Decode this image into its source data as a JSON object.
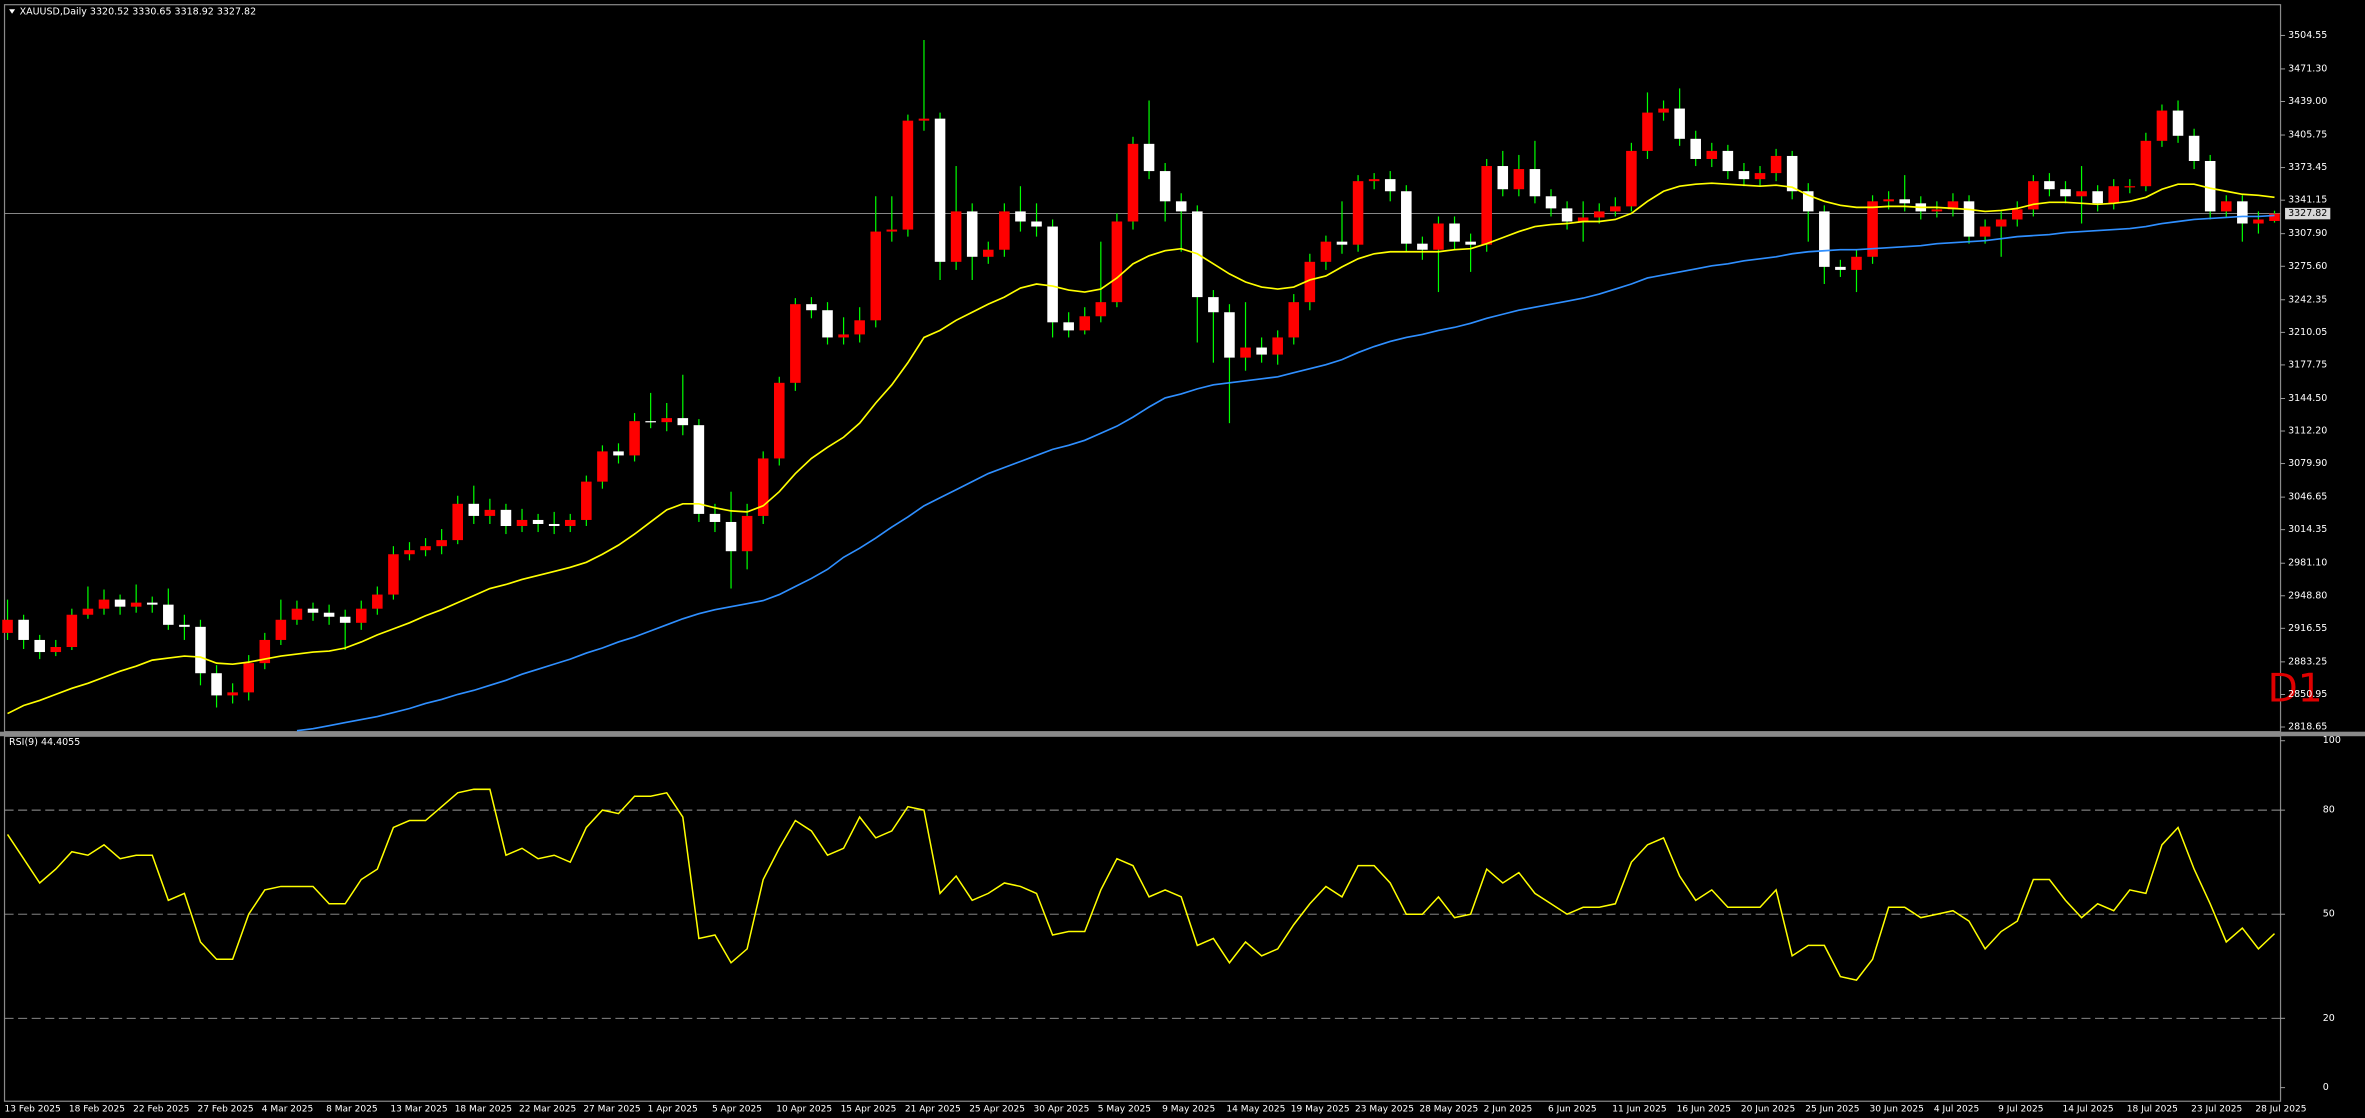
{
  "chart_data": [
    {
      "type": "candlestick",
      "title": "XAUUSD,Daily 3320.52 3330.65 3318.92 3327.82",
      "label": "D1",
      "categories": [
        "13 Feb 2025",
        null,
        null,
        null,
        "18 Feb 2025",
        null,
        null,
        null,
        "22 Feb 2025",
        null,
        null,
        null,
        "27 Feb 2025",
        null,
        null,
        null,
        "4 Mar 2025",
        null,
        null,
        null,
        "8 Mar 2025",
        null,
        null,
        null,
        "13 Mar 2025",
        null,
        null,
        null,
        "18 Mar 2025",
        null,
        null,
        null,
        "22 Mar 2025",
        null,
        null,
        null,
        "27 Mar 2025",
        null,
        null,
        null,
        "1 Apr 2025",
        null,
        null,
        null,
        "5 Apr 2025",
        null,
        null,
        null,
        "10 Apr 2025",
        null,
        null,
        null,
        "15 Apr 2025",
        null,
        null,
        null,
        "21 Apr 2025",
        null,
        null,
        null,
        "25 Apr 2025",
        null,
        null,
        null,
        "30 Apr 2025",
        null,
        null,
        null,
        "5 May 2025",
        null,
        null,
        null,
        "9 May 2025",
        null,
        null,
        null,
        "14 May 2025",
        null,
        null,
        null,
        "19 May 2025",
        null,
        null,
        null,
        "23 May 2025",
        null,
        null,
        null,
        "28 May 2025",
        null,
        null,
        null,
        "2 Jun 2025",
        null,
        null,
        null,
        "6 Jun 2025",
        null,
        null,
        null,
        "11 Jun 2025",
        null,
        null,
        null,
        "16 Jun 2025",
        null,
        null,
        null,
        "20 Jun 2025",
        null,
        null,
        null,
        "25 Jun 2025",
        null,
        null,
        null,
        "30 Jun 2025",
        null,
        null,
        null,
        "4 Jul 2025",
        null,
        null,
        null,
        "9 Jul 2025",
        null,
        null,
        null,
        "14 Jul 2025",
        null,
        null,
        null,
        "18 Jul 2025",
        null,
        null,
        null,
        "23 Jul 2025",
        null,
        null,
        null,
        "28 Jul 2025",
        null
      ],
      "open": [
        2912,
        2925,
        2905,
        2893,
        2898,
        2930,
        2936,
        2945,
        2938,
        2942,
        2940,
        2920,
        2918,
        2872,
        2850,
        2853,
        2882,
        2905,
        2925,
        2936,
        2932,
        2928,
        2922,
        2936,
        2950,
        2990,
        2994,
        2998,
        3004,
        3040,
        3028,
        3034,
        3018,
        3024,
        3020,
        3018,
        3024,
        3062,
        3092,
        3088,
        3122,
        3121,
        3125,
        3118,
        3030,
        3022,
        2993,
        3028,
        3085,
        3160,
        3238,
        3232,
        3205,
        3208,
        3222,
        3310,
        3312,
        3420,
        3422,
        3280,
        3330,
        3285,
        3292,
        3330,
        3320,
        3315,
        3220,
        3212,
        3226,
        3240,
        3320,
        3397,
        3370,
        3340,
        3330,
        3245,
        3230,
        3185,
        3195,
        3188,
        3205,
        3240,
        3280,
        3300,
        3297,
        3360,
        3362,
        3350,
        3298,
        3292,
        3318,
        3300,
        3297,
        3375,
        3352,
        3372,
        3345,
        3333,
        3320,
        3324,
        3330,
        3335,
        3390,
        3428,
        3432,
        3402,
        3382,
        3390,
        3370,
        3362,
        3368,
        3385,
        3350,
        3330,
        3275,
        3272,
        3285,
        3340,
        3342,
        3338,
        3330,
        3332,
        3340,
        3305,
        3315,
        3322,
        3332,
        3360,
        3352,
        3345,
        3350,
        3338,
        3355,
        3355,
        3400,
        3430,
        3405,
        3380,
        3330,
        3340,
        3318,
        3320.52
      ],
      "high": [
        2945,
        2930,
        2910,
        2905,
        2936,
        2958,
        2955,
        2950,
        2960,
        2948,
        2956,
        2930,
        2925,
        2880,
        2862,
        2890,
        2912,
        2945,
        2944,
        2942,
        2940,
        2935,
        2944,
        2958,
        2998,
        3002,
        3006,
        3015,
        3048,
        3058,
        3045,
        3040,
        3035,
        3030,
        3032,
        3030,
        3068,
        3098,
        3100,
        3130,
        3150,
        3140,
        3168,
        3124,
        3040,
        3052,
        3040,
        3092,
        3166,
        3244,
        3245,
        3240,
        3225,
        3235,
        3345,
        3345,
        3426,
        3500,
        3428,
        3375,
        3338,
        3300,
        3338,
        3355,
        3338,
        3322,
        3230,
        3235,
        3300,
        3328,
        3404,
        3440,
        3378,
        3348,
        3336,
        3252,
        3238,
        3240,
        3205,
        3212,
        3248,
        3288,
        3306,
        3340,
        3366,
        3368,
        3370,
        3356,
        3305,
        3325,
        3325,
        3308,
        3382,
        3390,
        3386,
        3400,
        3352,
        3340,
        3340,
        3338,
        3344,
        3398,
        3448,
        3440,
        3452,
        3410,
        3398,
        3396,
        3378,
        3375,
        3392,
        3390,
        3358,
        3336,
        3282,
        3292,
        3346,
        3350,
        3366,
        3345,
        3340,
        3348,
        3346,
        3322,
        3330,
        3340,
        3366,
        3368,
        3360,
        3375,
        3356,
        3362,
        3362,
        3408,
        3436,
        3440,
        3412,
        3386,
        3346,
        3346,
        3330,
        3330.65
      ],
      "low": [
        2905,
        2896,
        2886,
        2889,
        2895,
        2926,
        2930,
        2930,
        2932,
        2932,
        2915,
        2905,
        2860,
        2838,
        2842,
        2845,
        2876,
        2900,
        2920,
        2924,
        2920,
        2895,
        2915,
        2930,
        2945,
        2984,
        2988,
        2990,
        3000,
        3020,
        3020,
        3010,
        3012,
        3012,
        3010,
        3012,
        3018,
        3055,
        3080,
        3082,
        3115,
        3112,
        3108,
        3022,
        3012,
        2956,
        2975,
        3020,
        3078,
        3152,
        3224,
        3198,
        3198,
        3200,
        3215,
        3300,
        3305,
        3410,
        3262,
        3272,
        3262,
        3278,
        3285,
        3310,
        3305,
        3205,
        3205,
        3208,
        3220,
        3235,
        3312,
        3362,
        3320,
        3290,
        3200,
        3180,
        3120,
        3172,
        3180,
        3178,
        3198,
        3232,
        3272,
        3288,
        3290,
        3352,
        3340,
        3290,
        3282,
        3250,
        3292,
        3270,
        3290,
        3345,
        3345,
        3338,
        3325,
        3312,
        3300,
        3318,
        3325,
        3330,
        3382,
        3420,
        3395,
        3375,
        3374,
        3362,
        3355,
        3355,
        3360,
        3342,
        3300,
        3258,
        3265,
        3250,
        3278,
        3332,
        3330,
        3322,
        3324,
        3325,
        3298,
        3298,
        3285,
        3315,
        3325,
        3345,
        3338,
        3318,
        3330,
        3332,
        3348,
        3350,
        3394,
        3398,
        3372,
        3322,
        3324,
        3300,
        3308,
        3318.92
      ],
      "close": [
        2925,
        2905,
        2893,
        2898,
        2930,
        2936,
        2945,
        2938,
        2942,
        2940,
        2920,
        2918,
        2872,
        2850,
        2853,
        2882,
        2905,
        2925,
        2936,
        2932,
        2928,
        2922,
        2936,
        2950,
        2990,
        2994,
        2998,
        3004,
        3040,
        3028,
        3034,
        3018,
        3024,
        3020,
        3018,
        3024,
        3062,
        3092,
        3088,
        3122,
        3121,
        3125,
        3118,
        3030,
        3022,
        2993,
        3028,
        3085,
        3160,
        3238,
        3232,
        3205,
        3208,
        3222,
        3310,
        3312,
        3420,
        3422,
        3280,
        3330,
        3285,
        3292,
        3330,
        3320,
        3315,
        3220,
        3212,
        3226,
        3240,
        3320,
        3397,
        3370,
        3340,
        3330,
        3245,
        3230,
        3185,
        3195,
        3188,
        3205,
        3240,
        3280,
        3300,
        3297,
        3360,
        3362,
        3350,
        3298,
        3292,
        3318,
        3300,
        3297,
        3375,
        3352,
        3372,
        3345,
        3333,
        3320,
        3324,
        3330,
        3335,
        3390,
        3428,
        3432,
        3402,
        3382,
        3390,
        3370,
        3362,
        3368,
        3385,
        3350,
        3330,
        3275,
        3272,
        3285,
        3340,
        3342,
        3338,
        3330,
        3332,
        3340,
        3305,
        3315,
        3322,
        3332,
        3360,
        3352,
        3345,
        3350,
        3338,
        3355,
        3355,
        3400,
        3430,
        3405,
        3380,
        3330,
        3340,
        3318,
        3322,
        3327.82
      ],
      "up_color": "#ff0000",
      "down_color": "#ffffff",
      "wick_color": "#00ff00",
      "series": [
        {
          "color": "#ffff00",
          "values": [
            2832,
            2840,
            2845,
            2851,
            2857,
            2862,
            2868,
            2874,
            2879,
            2885,
            2887,
            2889,
            2888,
            2882,
            2881,
            2883,
            2886,
            2889,
            2891,
            2893,
            2894,
            2897,
            2903,
            2910,
            2916,
            2922,
            2929,
            2935,
            2942,
            2949,
            2956,
            2960,
            2965,
            2969,
            2973,
            2977,
            2982,
            2990,
            2999,
            3010,
            3022,
            3034,
            3040,
            3040,
            3036,
            3033,
            3032,
            3038,
            3052,
            3070,
            3085,
            3096,
            3106,
            3120,
            3140,
            3158,
            3180,
            3205,
            3212,
            3222,
            3230,
            3238,
            3245,
            3254,
            3258,
            3256,
            3252,
            3250,
            3253,
            3264,
            3278,
            3286,
            3291,
            3293,
            3288,
            3278,
            3268,
            3260,
            3255,
            3253,
            3255,
            3262,
            3266,
            3275,
            3283,
            3288,
            3290,
            3290,
            3290,
            3290,
            3292,
            3293,
            3298,
            3304,
            3310,
            3315,
            3317,
            3318,
            3320,
            3320,
            3322,
            3328,
            3340,
            3350,
            3355,
            3357,
            3358,
            3357,
            3356,
            3355,
            3356,
            3354,
            3346,
            3340,
            3336,
            3334,
            3334,
            3335,
            3335,
            3334,
            3334,
            3333,
            3332,
            3330,
            3331,
            3333,
            3337,
            3339,
            3339,
            3338,
            3337,
            3338,
            3340,
            3344,
            3352,
            3357,
            3357,
            3353,
            3350,
            3347,
            3346,
            3344
          ]
        },
        {
          "color": "#2f8fff",
          "values": [
            null,
            null,
            null,
            null,
            null,
            null,
            null,
            null,
            null,
            null,
            null,
            null,
            null,
            null,
            null,
            null,
            null,
            null,
            2815,
            2817,
            2820,
            2823,
            2826,
            2829,
            2833,
            2837,
            2842,
            2846,
            2851,
            2855,
            2860,
            2865,
            2871,
            2876,
            2881,
            2886,
            2892,
            2897,
            2903,
            2908,
            2914,
            2920,
            2926,
            2931,
            2935,
            2938,
            2941,
            2944,
            2950,
            2958,
            2966,
            2975,
            2987,
            2996,
            3006,
            3017,
            3027,
            3038,
            3046,
            3054,
            3062,
            3070,
            3076,
            3082,
            3088,
            3094,
            3098,
            3103,
            3110,
            3117,
            3126,
            3136,
            3145,
            3149,
            3154,
            3158,
            3160,
            3162,
            3164,
            3166,
            3170,
            3174,
            3178,
            3183,
            3190,
            3196,
            3201,
            3205,
            3208,
            3212,
            3215,
            3219,
            3224,
            3228,
            3232,
            3235,
            3238,
            3241,
            3244,
            3248,
            3253,
            3258,
            3264,
            3267,
            3270,
            3273,
            3276,
            3278,
            3281,
            3283,
            3285,
            3288,
            3290,
            3291,
            3292,
            3292,
            3293,
            3294,
            3295,
            3296,
            3298,
            3299,
            3300,
            3301,
            3303,
            3305,
            3306,
            3307,
            3309,
            3310,
            3311,
            3312,
            3313,
            3315,
            3318,
            3320,
            3322,
            3323,
            3324,
            3325,
            3325,
            3326
          ]
        }
      ],
      "last_price": 3327.82,
      "ylim": [
        2814,
        3535
      ],
      "yticks": [
        3504.55,
        {
          "value": 3471.3,
          "label": "3471.30"
        },
        {
          "value": 3439,
          "label": "3439.00"
        },
        3405.75,
        3373.45,
        3341.15,
        {
          "value": 3307.9,
          "label": "3307.90"
        },
        {
          "value": 3275.6,
          "label": "3275.60"
        },
        3242.35,
        3210.05,
        3177.75,
        {
          "value": 3144.5,
          "label": "3144.50"
        },
        {
          "value": 3112.2,
          "label": "3112.20"
        },
        {
          "value": 3079.9,
          "label": "3079.90"
        },
        3046.65,
        3014.35,
        {
          "value": 2981.1,
          "label": "2981.10"
        },
        {
          "value": 2948.8,
          "label": "2948.80"
        },
        2916.55,
        2883.25,
        2850.95,
        2818.65
      ],
      "grid": false
    },
    {
      "type": "line",
      "title": "RSI(9) 44.4055",
      "color": "#ffff00",
      "values": [
        73,
        66,
        59,
        63,
        68,
        67,
        70,
        66,
        67,
        67,
        54,
        56,
        42,
        37,
        37,
        50,
        57,
        58,
        58,
        58,
        53,
        53,
        60,
        63,
        75,
        77,
        77,
        81,
        85,
        86,
        86,
        67,
        69,
        66,
        67,
        65,
        75,
        80,
        79,
        84,
        84,
        85,
        78,
        43,
        44,
        36,
        40,
        60,
        69,
        77,
        74,
        67,
        69,
        78,
        72,
        74,
        81,
        80,
        56,
        61,
        54,
        56,
        59,
        58,
        56,
        44,
        45,
        45,
        57,
        66,
        64,
        55,
        57,
        55,
        41,
        43,
        36,
        42,
        38,
        40,
        47,
        53,
        58,
        55,
        64,
        64,
        59,
        50,
        50,
        55,
        49,
        50,
        63,
        59,
        62,
        56,
        53,
        50,
        52,
        52,
        53,
        65,
        70,
        72,
        61,
        54,
        57,
        52,
        52,
        52,
        57,
        38,
        41,
        41,
        32,
        31,
        37,
        52,
        52,
        49,
        50,
        51,
        48,
        40,
        45,
        48,
        60,
        60,
        54,
        49,
        53,
        51,
        57,
        56,
        70,
        75,
        63,
        53,
        42,
        46,
        40,
        44.4055
      ],
      "levels": [
        20,
        50,
        80
      ],
      "ylim": [
        0,
        100
      ],
      "yticks": [
        0,
        20,
        50,
        80,
        100
      ]
    }
  ]
}
